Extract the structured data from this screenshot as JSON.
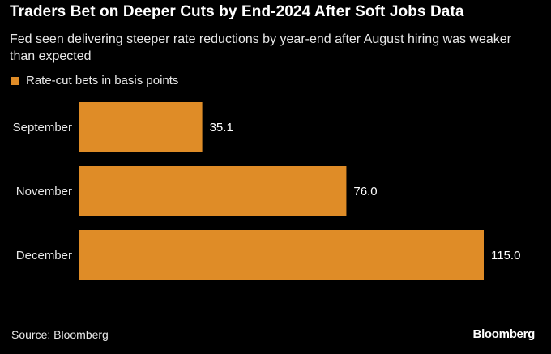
{
  "chart_data": {
    "type": "bar",
    "orientation": "horizontal",
    "title": "Traders Bet on Deeper Cuts by End-2024 After Soft Jobs Data",
    "subtitle": "Fed seen delivering steeper rate reductions by year-end after August hiring was weaker than expected",
    "categories": [
      "September",
      "November",
      "December"
    ],
    "series": [
      {
        "name": "Rate-cut bets in basis points",
        "values": [
          35.1,
          76.0,
          115.0
        ],
        "labels": [
          "35.1",
          "76.0",
          "115.0"
        ],
        "color": "#df8c27"
      }
    ],
    "grid": false,
    "legend_position": "top-left",
    "source": "Source: Bloomberg"
  },
  "branding": {
    "logo": "Bloomberg"
  },
  "colors": {
    "background": "#000000",
    "bar": "#df8c27"
  }
}
